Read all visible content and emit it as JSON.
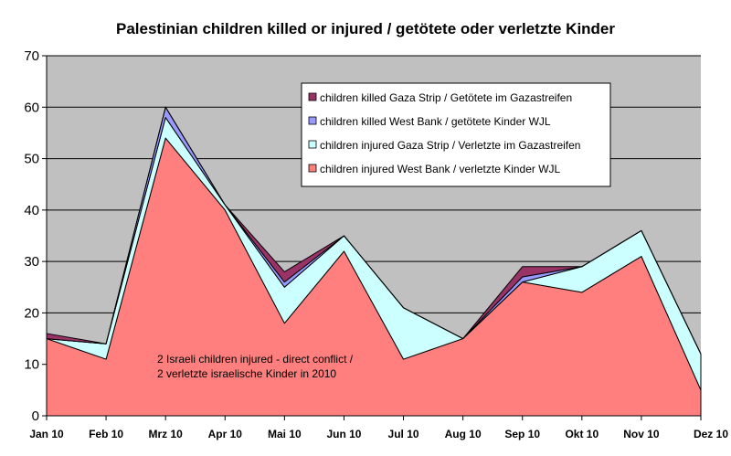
{
  "chart_data": {
    "type": "area",
    "stacked": true,
    "title": "Palestinian children killed or injured / getötete oder verletzte Kinder",
    "xlabel": "",
    "ylabel": "",
    "categories": [
      "Jan 10",
      "Feb 10",
      "Mrz 10",
      "Apr 10",
      "Mai 10",
      "Jun 10",
      "Jul 10",
      "Aug 10",
      "Sep 10",
      "Okt 10",
      "Nov 10",
      "Dez 10"
    ],
    "ylim": [
      0,
      70
    ],
    "yticks": [
      0,
      10,
      20,
      30,
      40,
      50,
      60,
      70
    ],
    "grid": true,
    "legend_position": "top-right",
    "series": [
      {
        "name": "children injured West Bank / verletzte Kinder WJL",
        "color": "#FF7F7F",
        "values": [
          15,
          11,
          54,
          40,
          18,
          32,
          11,
          15,
          26,
          24,
          31,
          5
        ]
      },
      {
        "name": "children injured Gaza Strip / Verletzte im Gazastreifen",
        "color": "#CCFFFF",
        "values": [
          0,
          3,
          4,
          1,
          7,
          3,
          10,
          0,
          0,
          5,
          5,
          7
        ]
      },
      {
        "name": "children killed West Bank / getötete Kinder WJL",
        "color": "#9999FF",
        "values": [
          0,
          0,
          2,
          0,
          1,
          0,
          0,
          0,
          1,
          0,
          0,
          0
        ]
      },
      {
        "name": "children killed Gaza Strip / Getötete im Gazastreifen",
        "color": "#993366",
        "values": [
          1,
          0,
          0,
          0,
          2,
          0,
          0,
          0,
          2,
          0,
          0,
          0
        ]
      }
    ],
    "annotation": [
      "2 Israeli children injured - direct conflict /",
      "2 verletzte israelische Kinder in 2010"
    ]
  }
}
